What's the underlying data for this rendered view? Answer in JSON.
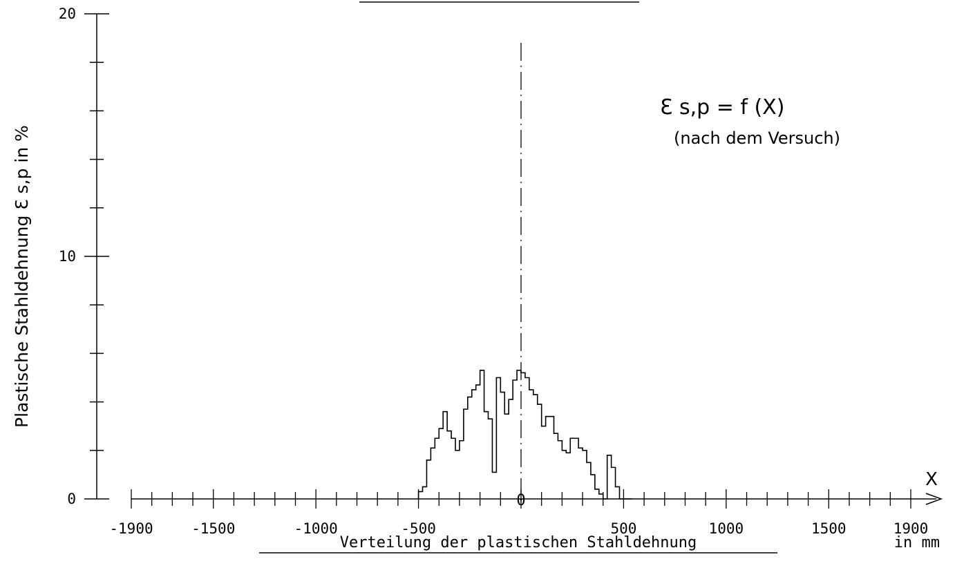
{
  "chart_data": {
    "type": "line",
    "title": "",
    "xlabel": "Verteilung der plastischen Stahldehnung",
    "xunit": "in mm",
    "ylabel": "Plastische Stahldehnung  Ɛ s,p  in  %",
    "x_tick_labels": [
      "-1900",
      "-1500",
      "-1000",
      "-500",
      "0",
      "500",
      "1000",
      "1500",
      "1900"
    ],
    "x_tick_values": [
      -1900,
      -1500,
      -1000,
      -500,
      0,
      500,
      1000,
      1500,
      1900
    ],
    "y_tick_labels": [
      "0",
      "10",
      "20"
    ],
    "y_tick_values": [
      0,
      10,
      20
    ],
    "xlim": [
      -1900,
      1900
    ],
    "ylim": [
      0,
      20
    ],
    "axis_arrow_label": "X",
    "annotation_formula": "Ɛ s,p  =  f (X)",
    "annotation_note": "(nach dem Versuch)",
    "series": [
      {
        "step": [
          [
            -500,
            0.3
          ],
          [
            -480,
            0.5
          ],
          [
            -460,
            1.6
          ],
          [
            -440,
            2.1
          ],
          [
            -420,
            2.5
          ],
          [
            -400,
            2.9
          ],
          [
            -380,
            3.6
          ],
          [
            -360,
            2.8
          ],
          [
            -340,
            2.5
          ],
          [
            -320,
            2.0
          ],
          [
            -300,
            2.4
          ],
          [
            -280,
            3.7
          ],
          [
            -260,
            4.2
          ],
          [
            -240,
            4.5
          ],
          [
            -220,
            4.7
          ],
          [
            -200,
            5.3
          ],
          [
            -180,
            3.6
          ],
          [
            -160,
            3.3
          ],
          [
            -140,
            1.1
          ],
          [
            -120,
            5.0
          ],
          [
            -100,
            4.4
          ],
          [
            -80,
            3.5
          ],
          [
            -60,
            4.1
          ],
          [
            -40,
            4.9
          ],
          [
            -20,
            5.3
          ],
          [
            0,
            5.2
          ],
          [
            20,
            5.0
          ],
          [
            40,
            4.5
          ],
          [
            60,
            4.3
          ],
          [
            80,
            3.9
          ],
          [
            100,
            3.0
          ],
          [
            120,
            3.4
          ],
          [
            140,
            3.4
          ],
          [
            160,
            2.7
          ],
          [
            180,
            2.4
          ],
          [
            200,
            2.0
          ],
          [
            220,
            1.9
          ],
          [
            240,
            2.5
          ],
          [
            260,
            2.5
          ],
          [
            280,
            2.1
          ],
          [
            300,
            2.0
          ],
          [
            320,
            1.5
          ],
          [
            340,
            1.0
          ],
          [
            360,
            0.4
          ],
          [
            380,
            0.2
          ],
          [
            400,
            0.0
          ],
          [
            420,
            1.8
          ],
          [
            440,
            1.3
          ],
          [
            460,
            0.5
          ],
          [
            480,
            0.0
          ]
        ]
      }
    ],
    "reference_line_x": 0,
    "grid": false
  }
}
